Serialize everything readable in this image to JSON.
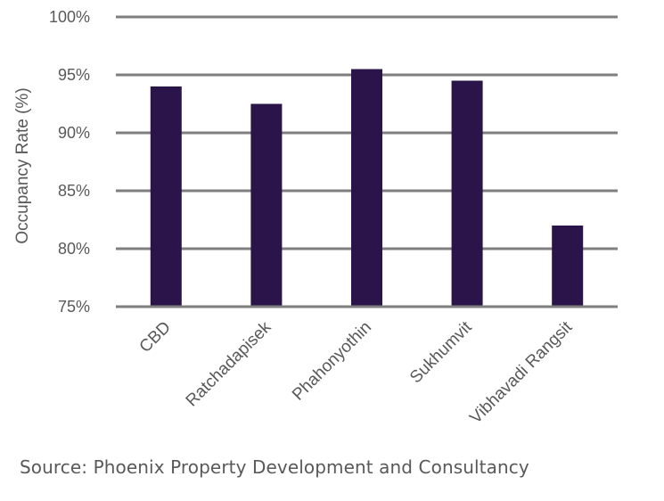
{
  "chart_data": {
    "type": "bar",
    "categories": [
      "CBD",
      "Ratchadapisek",
      "Phahonyothin",
      "Sukhumvit",
      "Vibhavadi Rangsit"
    ],
    "values": [
      94.0,
      92.5,
      95.5,
      94.5,
      82.0
    ],
    "ylabel": "Occupancy Rate (%)",
    "xlabel": "",
    "ylim": [
      75,
      100
    ],
    "yticks": [
      75,
      80,
      85,
      90,
      95,
      100
    ],
    "ytick_labels": [
      "75%",
      "80%",
      "85%",
      "90%",
      "95%",
      "100%"
    ],
    "grid": true,
    "legend": "none",
    "bar_color": "#2b1449",
    "grid_color": "#7f7f7f",
    "text_color": "#595959"
  },
  "source": "Source: Phoenix Property Development and Consultancy"
}
